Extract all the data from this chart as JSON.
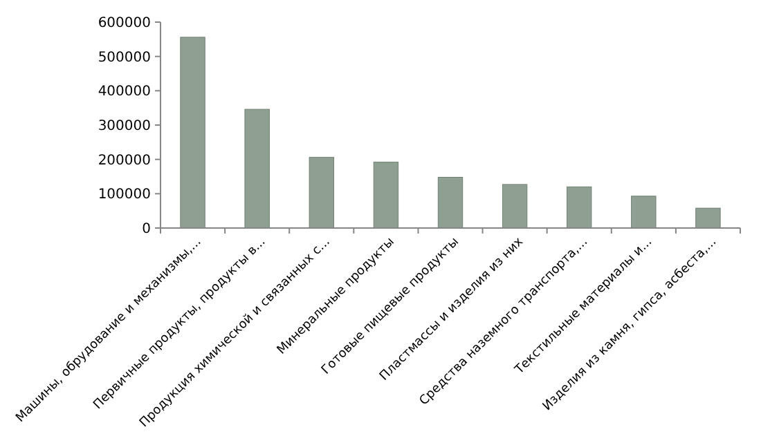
{
  "chart_data": {
    "type": "bar",
    "categories": [
      "Машины, обрудование и механизмы,...",
      "Первичные продукты, продукты в...",
      "Продукция химической и связанных с...",
      "Минеральные продукты",
      "Готовые пищевые продукты",
      "Пластмассы и изделия из них",
      "Средства наземного транспорта,...",
      "Текстильные материалы и...",
      "Изделия из камня, гипса, асбеста,..."
    ],
    "values": [
      556000,
      346000,
      206000,
      192000,
      148000,
      127000,
      120000,
      93000,
      58000
    ],
    "color": "#8fa093",
    "ylim": [
      0,
      600000
    ],
    "yticks": [
      0,
      100000,
      200000,
      300000,
      400000,
      500000,
      600000
    ],
    "grid": false
  }
}
